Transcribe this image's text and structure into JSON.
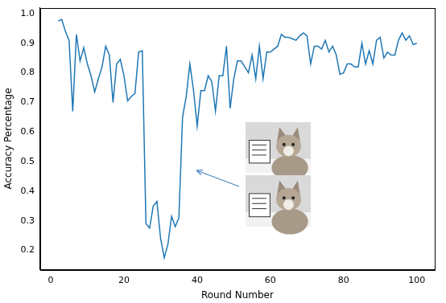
{
  "chart_data": {
    "type": "line",
    "x_label": "Round Number",
    "y_label": "Accuracy Percentage",
    "x": [
      2,
      3,
      4,
      5,
      6,
      7,
      8,
      9,
      10,
      11,
      12,
      13,
      14,
      15,
      16,
      17,
      18,
      19,
      20,
      21,
      22,
      23,
      24,
      25,
      26,
      27,
      28,
      29,
      30,
      31,
      32,
      33,
      34,
      35,
      36,
      37,
      38,
      39,
      40,
      41,
      42,
      43,
      44,
      45,
      46,
      47,
      48,
      49,
      50,
      51,
      52,
      53,
      54,
      55,
      56,
      57,
      58,
      59,
      60,
      61,
      62,
      63,
      64,
      65,
      66,
      67,
      68,
      69,
      70,
      71,
      72,
      73,
      74,
      75,
      76,
      77,
      78,
      79,
      80,
      81,
      82,
      83,
      84,
      85,
      86,
      87,
      88,
      89,
      90,
      91,
      92,
      93,
      94,
      95,
      96,
      97,
      98,
      99,
      100
    ],
    "values": [
      0.975,
      0.98,
      0.94,
      0.91,
      0.67,
      0.93,
      0.84,
      0.885,
      0.83,
      0.79,
      0.735,
      0.78,
      0.82,
      0.89,
      0.86,
      0.7,
      0.83,
      0.845,
      0.79,
      0.705,
      0.72,
      0.73,
      0.87,
      0.875,
      0.29,
      0.275,
      0.35,
      0.365,
      0.24,
      0.175,
      0.22,
      0.315,
      0.28,
      0.31,
      0.65,
      0.72,
      0.83,
      0.74,
      0.62,
      0.74,
      0.74,
      0.79,
      0.77,
      0.67,
      0.79,
      0.79,
      0.89,
      0.68,
      0.78,
      0.84,
      0.84,
      0.82,
      0.8,
      0.86,
      0.78,
      0.89,
      0.78,
      0.87,
      0.87,
      0.88,
      0.89,
      0.93,
      0.92,
      0.92,
      0.915,
      0.91,
      0.925,
      0.935,
      0.925,
      0.83,
      0.89,
      0.89,
      0.88,
      0.91,
      0.87,
      0.89,
      0.86,
      0.795,
      0.8,
      0.83,
      0.83,
      0.82,
      0.82,
      0.9,
      0.83,
      0.875,
      0.83,
      0.91,
      0.92,
      0.85,
      0.87,
      0.86,
      0.86,
      0.91,
      0.935,
      0.91,
      0.925,
      0.895,
      0.9
    ],
    "color": "#1f77b4",
    "xlim": [
      -2.9,
      104.9
    ],
    "ylim": [
      0.135,
      1.02
    ],
    "xticks": [
      0,
      20,
      40,
      60,
      80,
      100
    ],
    "yticks": [
      0.2,
      0.3,
      0.4,
      0.5,
      0.6,
      0.7,
      0.8,
      0.9,
      {
        "value": 1,
        "label": "1.0"
      }
    ],
    "grid": false
  }
}
